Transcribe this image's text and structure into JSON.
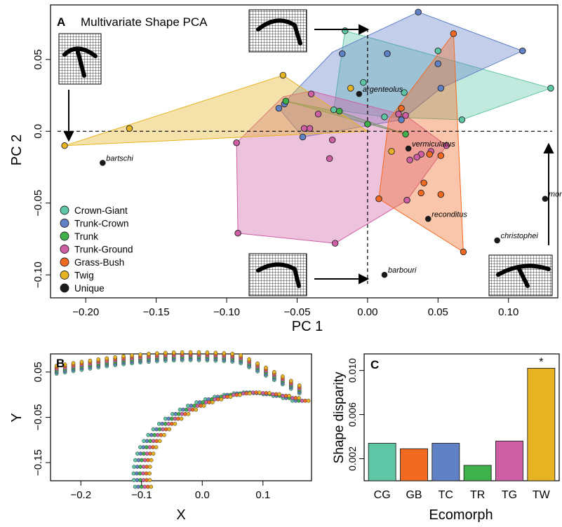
{
  "panels": {
    "a": {
      "letter": "A",
      "title": "Multivariate Shape PCA"
    },
    "b": {
      "letter": "B"
    },
    "c": {
      "letter": "C"
    }
  },
  "colors": {
    "Crown-Giant": "#5ec6a5",
    "Trunk-Crown": "#6181c7",
    "Trunk": "#3fb14a",
    "Trunk-Ground": "#cf5fa5",
    "Grass-Bush": "#f26a21",
    "Twig": "#e6b422",
    "Unique": "#1a1a1a"
  },
  "chart_data": [
    {
      "type": "scatter",
      "panel": "A",
      "title": "Multivariate Shape PCA",
      "xlabel": "PC  1",
      "ylabel": "PC  2",
      "xlim": [
        -0.225,
        0.135
      ],
      "ylim": [
        -0.116,
        0.088
      ],
      "xticks": [
        -0.2,
        -0.15,
        -0.1,
        -0.05,
        0.0,
        0.05,
        0.1
      ],
      "xtick_labels": [
        "−0.20",
        "−0.15",
        "−0.10",
        "−0.05",
        "0.00",
        "0.05",
        "0.10"
      ],
      "yticks": [
        0.05,
        0.0,
        -0.05,
        -0.1
      ],
      "ytick_labels": [
        "0.05",
        "0.0",
        "−0.05",
        "−0.10"
      ],
      "legend_position": "bottom-left",
      "legend": [
        "Crown-Giant",
        "Trunk-Crown",
        "Trunk",
        "Trunk-Ground",
        "Grass-Bush",
        "Twig",
        "Unique"
      ],
      "reference_lines": {
        "x": 0.0,
        "y": 0.0,
        "style": "dashed"
      },
      "hulls": [
        {
          "group": "Crown-Giant",
          "points": [
            [
              -0.016,
              0.07
            ],
            [
              0.13,
              0.03
            ],
            [
              0.067,
              0.008
            ],
            [
              0.012,
              0.01
            ],
            [
              -0.024,
              0.015
            ]
          ]
        },
        {
          "group": "Trunk-Crown",
          "points": [
            [
              -0.063,
              0.016
            ],
            [
              -0.025,
              0.055
            ],
            [
              0.036,
              0.083
            ],
            [
              0.11,
              0.056
            ],
            [
              0.052,
              0.03
            ],
            [
              0.024,
              0.008
            ],
            [
              -0.046,
              -0.004
            ]
          ]
        },
        {
          "group": "Trunk",
          "points": [
            [
              -0.058,
              0.021
            ],
            [
              0.027,
              -0.002
            ],
            [
              -0.018,
              0.013
            ]
          ]
        },
        {
          "group": "Trunk-Ground",
          "points": [
            [
              -0.093,
              -0.008
            ],
            [
              -0.06,
              0.024
            ],
            [
              -0.04,
              0.028
            ],
            [
              0.027,
              0.011
            ],
            [
              0.056,
              -0.01
            ],
            [
              0.028,
              -0.048
            ],
            [
              -0.023,
              -0.078
            ],
            [
              -0.092,
              -0.071
            ]
          ]
        },
        {
          "group": "Grass-Bush",
          "points": [
            [
              0.015,
              0.008
            ],
            [
              0.061,
              0.068
            ],
            [
              0.068,
              -0.084
            ],
            [
              0.008,
              -0.047
            ]
          ]
        },
        {
          "group": "Twig",
          "points": [
            [
              -0.215,
              -0.01
            ],
            [
              -0.06,
              0.039
            ],
            [
              0.0,
              0.0
            ]
          ]
        }
      ],
      "points": [
        {
          "group": "Crown-Giant",
          "x": -0.016,
          "y": 0.07
        },
        {
          "group": "Crown-Giant",
          "x": 0.13,
          "y": 0.03
        },
        {
          "group": "Crown-Giant",
          "x": 0.067,
          "y": 0.008
        },
        {
          "group": "Crown-Giant",
          "x": 0.012,
          "y": 0.01
        },
        {
          "group": "Crown-Giant",
          "x": -0.024,
          "y": 0.015
        },
        {
          "group": "Crown-Giant",
          "x": 0.026,
          "y": 0.027
        },
        {
          "group": "Crown-Giant",
          "x": 0.05,
          "y": 0.056
        },
        {
          "group": "Crown-Giant",
          "x": -0.003,
          "y": 0.034
        },
        {
          "group": "Trunk-Crown",
          "x": 0.036,
          "y": 0.083
        },
        {
          "group": "Trunk-Crown",
          "x": 0.11,
          "y": 0.056
        },
        {
          "group": "Trunk-Crown",
          "x": 0.052,
          "y": 0.03
        },
        {
          "group": "Trunk-Crown",
          "x": 0.024,
          "y": 0.008
        },
        {
          "group": "Trunk-Crown",
          "x": -0.046,
          "y": -0.004
        },
        {
          "group": "Trunk-Crown",
          "x": -0.063,
          "y": 0.016
        },
        {
          "group": "Trunk-Crown",
          "x": -0.059,
          "y": 0.019
        },
        {
          "group": "Trunk-Crown",
          "x": -0.018,
          "y": 0.054
        },
        {
          "group": "Trunk-Crown",
          "x": 0.014,
          "y": 0.054
        },
        {
          "group": "Trunk-Crown",
          "x": 0.05,
          "y": 0.047
        },
        {
          "group": "Trunk",
          "x": -0.058,
          "y": 0.021
        },
        {
          "group": "Trunk",
          "x": 0.027,
          "y": -0.002
        },
        {
          "group": "Trunk",
          "x": -0.02,
          "y": 0.014
        },
        {
          "group": "Trunk",
          "x": 0.0,
          "y": 0.005
        },
        {
          "group": "Trunk-Ground",
          "x": -0.093,
          "y": -0.008
        },
        {
          "group": "Trunk-Ground",
          "x": -0.092,
          "y": -0.071
        },
        {
          "group": "Trunk-Ground",
          "x": -0.023,
          "y": -0.078
        },
        {
          "group": "Trunk-Ground",
          "x": 0.028,
          "y": -0.048
        },
        {
          "group": "Trunk-Ground",
          "x": 0.056,
          "y": -0.01
        },
        {
          "group": "Trunk-Ground",
          "x": 0.027,
          "y": 0.011
        },
        {
          "group": "Trunk-Ground",
          "x": -0.04,
          "y": 0.026
        },
        {
          "group": "Trunk-Ground",
          "x": -0.041,
          "y": 0.002
        },
        {
          "group": "Trunk-Ground",
          "x": -0.035,
          "y": 0.012
        },
        {
          "group": "Trunk-Ground",
          "x": -0.025,
          "y": -0.006
        },
        {
          "group": "Trunk-Ground",
          "x": -0.027,
          "y": -0.019
        },
        {
          "group": "Trunk-Ground",
          "x": -0.045,
          "y": 0.002
        },
        {
          "group": "Trunk-Ground",
          "x": 0.022,
          "y": 0.012
        },
        {
          "group": "Trunk-Ground",
          "x": 0.038,
          "y": -0.016
        },
        {
          "group": "Trunk-Ground",
          "x": 0.035,
          "y": -0.018
        },
        {
          "group": "Trunk-Ground",
          "x": 0.045,
          "y": -0.014
        },
        {
          "group": "Trunk-Ground",
          "x": 0.03,
          "y": -0.02
        },
        {
          "group": "Grass-Bush",
          "x": 0.061,
          "y": 0.068
        },
        {
          "group": "Grass-Bush",
          "x": 0.068,
          "y": -0.084
        },
        {
          "group": "Grass-Bush",
          "x": 0.008,
          "y": -0.047
        },
        {
          "group": "Grass-Bush",
          "x": 0.024,
          "y": 0.016
        },
        {
          "group": "Grass-Bush",
          "x": 0.052,
          "y": -0.017
        },
        {
          "group": "Grass-Bush",
          "x": 0.044,
          "y": -0.016
        },
        {
          "group": "Grass-Bush",
          "x": 0.04,
          "y": -0.036
        },
        {
          "group": "Grass-Bush",
          "x": 0.038,
          "y": -0.043
        },
        {
          "group": "Grass-Bush",
          "x": 0.052,
          "y": -0.044
        },
        {
          "group": "Twig",
          "x": -0.215,
          "y": -0.01
        },
        {
          "group": "Twig",
          "x": -0.169,
          "y": 0.002
        },
        {
          "group": "Twig",
          "x": -0.06,
          "y": 0.039
        },
        {
          "group": "Twig",
          "x": -0.012,
          "y": 0.03
        },
        {
          "group": "Twig",
          "x": 0.017,
          "y": -0.014
        },
        {
          "group": "Unique",
          "x": -0.188,
          "y": -0.022,
          "label": "bartschi"
        },
        {
          "group": "Unique",
          "x": -0.006,
          "y": 0.026,
          "label": "argenteolus"
        },
        {
          "group": "Unique",
          "x": 0.029,
          "y": -0.012,
          "label": "vermiculatus"
        },
        {
          "group": "Unique",
          "x": 0.126,
          "y": -0.047,
          "label": "monticola"
        },
        {
          "group": "Unique",
          "x": 0.043,
          "y": -0.061,
          "label": "reconditus"
        },
        {
          "group": "Unique",
          "x": 0.092,
          "y": -0.076,
          "label": "christophei"
        },
        {
          "group": "Unique",
          "x": 0.012,
          "y": -0.1,
          "label": "barbouri"
        }
      ]
    },
    {
      "type": "scatter",
      "panel": "B",
      "xlabel": "X",
      "ylabel": "Y",
      "xlim": [
        -0.25,
        0.18
      ],
      "ylim": [
        -0.19,
        0.09
      ],
      "xticks": [
        -0.2,
        -0.1,
        0.0,
        0.1
      ],
      "xtick_labels": [
        "−0.2",
        "−0.1",
        "0.0",
        "0.1"
      ],
      "yticks": [
        0.05,
        -0.05,
        -0.15
      ],
      "ytick_labels": [
        "0.05",
        "−0.05",
        "−0.15"
      ],
      "curves": {
        "description": "semilandmark outlines of 6 ecomorph mean shapes",
        "outer_arc": {
          "x_from": -0.24,
          "x_to": 0.16
        },
        "inner_arc": {
          "x_from": -0.09,
          "x_to": 0.16
        }
      }
    },
    {
      "type": "bar",
      "panel": "C",
      "xlabel": "Ecomorph",
      "ylabel": "Shape disparity",
      "categories": [
        "CG",
        "GB",
        "TC",
        "TR",
        "TG",
        "TW"
      ],
      "values": [
        0.0034,
        0.0029,
        0.0034,
        0.0014,
        0.0036,
        0.0102
      ],
      "colors": [
        "#5ec6a5",
        "#f26a21",
        "#6181c7",
        "#3fb14a",
        "#cf5fa5",
        "#e6b422"
      ],
      "annotations": [
        {
          "category": "TW",
          "text": "*"
        }
      ],
      "ylim": [
        0,
        0.0115
      ],
      "yticks": [
        0.002,
        0.006,
        0.01
      ],
      "ytick_labels": [
        "0.002",
        "0.006",
        "0.010"
      ]
    }
  ]
}
